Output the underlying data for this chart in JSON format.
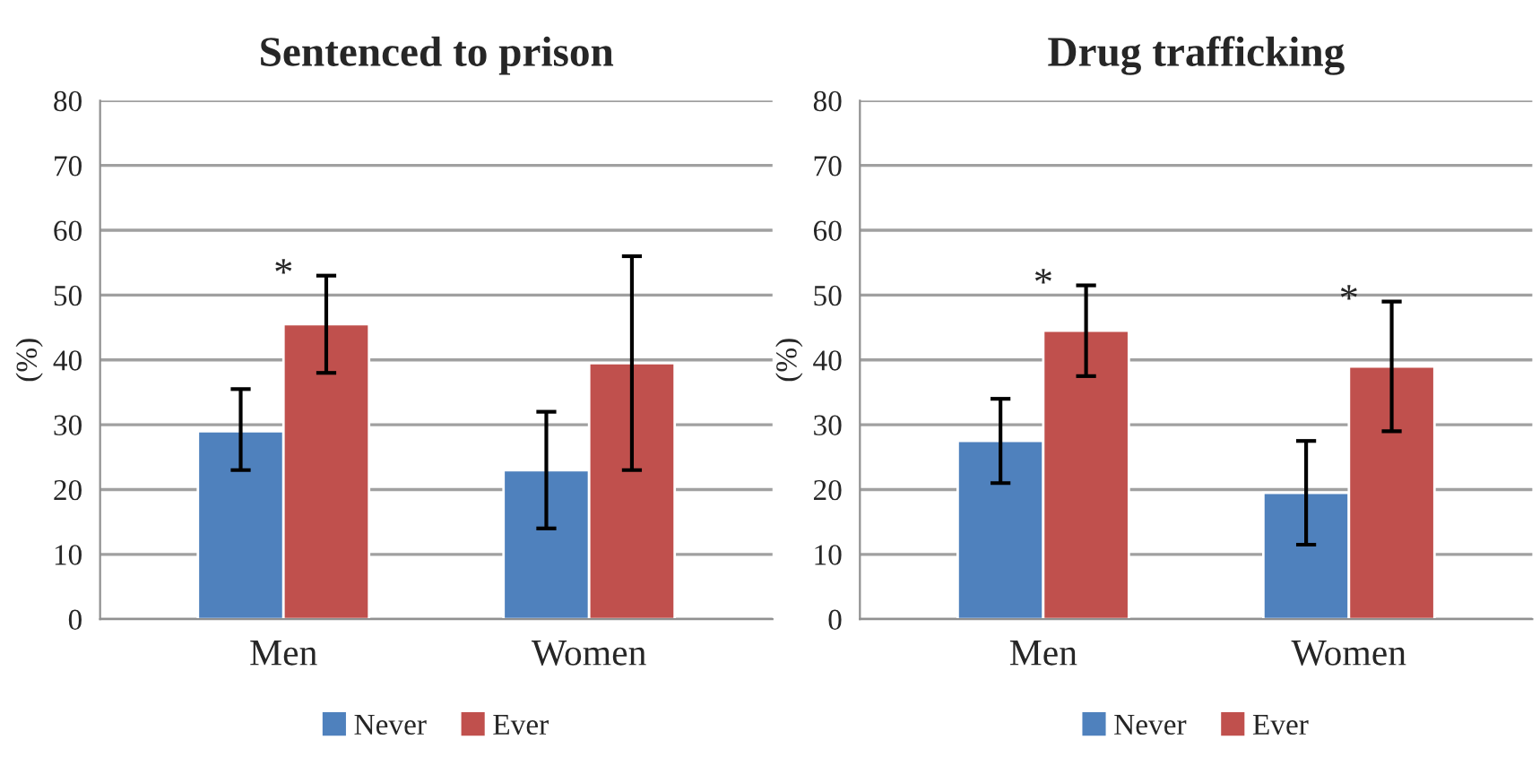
{
  "chart_data": [
    {
      "type": "bar",
      "title": "Sentenced to prison",
      "ylabel": "(%)",
      "categories": [
        "Men",
        "Women"
      ],
      "series": [
        {
          "name": "Never",
          "color": "#4f81bd",
          "values": [
            29,
            23
          ],
          "errors": [
            [
              23,
              35.5
            ],
            [
              14,
              32
            ]
          ]
        },
        {
          "name": "Ever",
          "color": "#c0504d",
          "values": [
            45.5,
            39.5
          ],
          "errors": [
            [
              38,
              53
            ],
            [
              23,
              56
            ]
          ]
        }
      ],
      "ylim": [
        0,
        80
      ],
      "yticks": [
        0,
        10,
        20,
        30,
        40,
        50,
        60,
        70,
        80
      ],
      "grid": "y",
      "legend": "bottom",
      "annotations": [
        "*"
      ]
    },
    {
      "type": "bar",
      "title": "Drug trafficking",
      "ylabel": "(%)",
      "categories": [
        "Men",
        "Women"
      ],
      "series": [
        {
          "name": "Never",
          "color": "#4f81bd",
          "values": [
            27.5,
            19.5
          ],
          "errors": [
            [
              21,
              34
            ],
            [
              11.5,
              27.5
            ]
          ]
        },
        {
          "name": "Ever",
          "color": "#c0504d",
          "values": [
            44.5,
            39
          ],
          "errors": [
            [
              37.5,
              51.5
            ],
            [
              29,
              49
            ]
          ]
        }
      ],
      "ylim": [
        0,
        80
      ],
      "yticks": [
        0,
        10,
        20,
        30,
        40,
        50,
        60,
        70,
        80
      ],
      "grid": "y",
      "legend": "bottom",
      "annotations": [
        "*",
        "*"
      ]
    }
  ]
}
